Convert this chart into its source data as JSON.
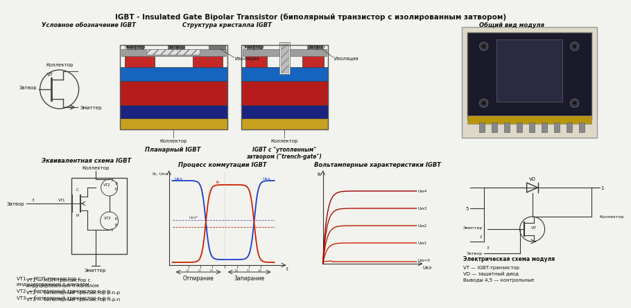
{
  "title": "IGBT - Insulated Gate Bipolar Transistor (биполярный транзистор с изолированным затвором)",
  "bg_color": "#f2f2ee",
  "text_color": "#111111",
  "sym_label": "Условное обозначение IGBT",
  "crystal_label": "Структура кристалла IGBT",
  "module_label": "Общий вид модуля",
  "equiv_label": "Эквивалентная схема IGBT",
  "commut_label": "Процесс коммутации IGBT",
  "vac_label": "Вольтамперные характеристики IGBT",
  "planar_label": "Планарный IGBT",
  "trench_label": "IGBT с \"утопленным\"\nзатвором (\"trench-gate\")",
  "otpir_label": "Отпирание",
  "zapir_label": "Запирание",
  "vt1_text": "VT1 — МОП-транзистор с\nиндуцированным n-каналом\nVT2 — биполярный транзистор p-n-p\nVT3 — биполярный транзистор n-p-n",
  "elscheme_label": "Электрическая схема модуля",
  "elscheme_text": "VT — IGBT-транзистор\nVD — защитный диод\nВыводы 4,5 — контрольные",
  "kollector": "Коллектор",
  "emitter": "Эмиттер",
  "zatvor": "Затвор",
  "izolyaciya": "Изоляция",
  "emitter_short": "Эмиттер"
}
